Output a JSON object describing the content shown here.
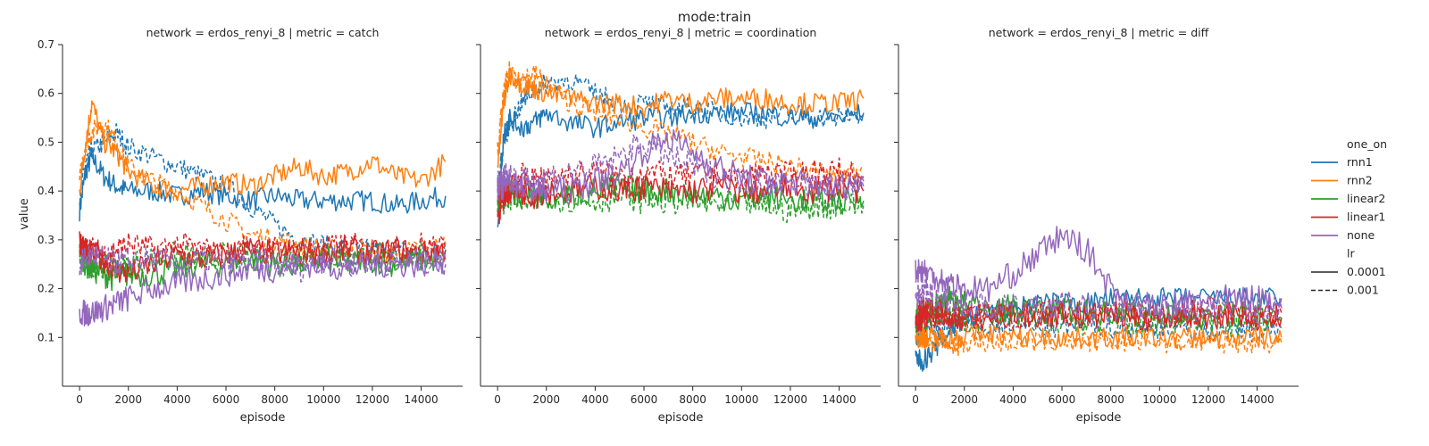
{
  "figure": {
    "suptitle": "mode:train",
    "ylabel": "value",
    "xlabel": "episode"
  },
  "legend": {
    "hue_title": "one_on",
    "hue_items": [
      {
        "label": "rnn1",
        "color": "#1f77b4"
      },
      {
        "label": "rnn2",
        "color": "#ff7f0e"
      },
      {
        "label": "linear2",
        "color": "#2ca02c"
      },
      {
        "label": "linear1",
        "color": "#d62728"
      },
      {
        "label": "none",
        "color": "#9467bd"
      }
    ],
    "style_title": "lr",
    "style_items": [
      {
        "label": "0.0001",
        "dash": "solid"
      },
      {
        "label": "0.001",
        "dash": "dashed"
      }
    ],
    "placement": "right"
  },
  "chart_data": [
    {
      "type": "line",
      "title": "network = erdos_renyi_8 | metric = catch",
      "xlabel": "episode",
      "ylabel": "value",
      "xlim": [
        -700,
        15700
      ],
      "ylim": [
        0,
        0.7
      ],
      "xticks": [
        0,
        2000,
        4000,
        6000,
        8000,
        10000,
        12000,
        14000
      ],
      "yticks": [
        0.1,
        0.2,
        0.3,
        0.4,
        0.5,
        0.6,
        0.7
      ],
      "x": [
        0,
        250,
        500,
        1000,
        1500,
        2000,
        3000,
        4000,
        5000,
        6000,
        7000,
        8000,
        9000,
        10000,
        11000,
        12000,
        13000,
        14000,
        15000
      ],
      "series": [
        {
          "name": "rnn1",
          "lr": "0.0001",
          "values": [
            0.36,
            0.44,
            0.47,
            0.43,
            0.41,
            0.4,
            0.4,
            0.39,
            0.4,
            0.39,
            0.38,
            0.39,
            0.38,
            0.38,
            0.38,
            0.38,
            0.37,
            0.38,
            0.39
          ]
        },
        {
          "name": "rnn1",
          "lr": "0.001",
          "values": [
            0.38,
            0.46,
            0.48,
            0.5,
            0.52,
            0.49,
            0.47,
            0.45,
            0.43,
            0.41,
            0.37,
            0.33,
            0.3,
            0.29,
            0.28,
            0.28,
            0.28,
            0.27,
            0.28
          ]
        },
        {
          "name": "rnn2",
          "lr": "0.0001",
          "values": [
            0.4,
            0.5,
            0.58,
            0.5,
            0.48,
            0.44,
            0.41,
            0.4,
            0.41,
            0.42,
            0.41,
            0.43,
            0.45,
            0.43,
            0.44,
            0.46,
            0.43,
            0.42,
            0.46
          ]
        },
        {
          "name": "rnn2",
          "lr": "0.001",
          "values": [
            0.42,
            0.5,
            0.52,
            0.54,
            0.5,
            0.45,
            0.42,
            0.4,
            0.37,
            0.34,
            0.31,
            0.3,
            0.29,
            0.28,
            0.28,
            0.28,
            0.27,
            0.28,
            0.29
          ]
        },
        {
          "name": "linear2",
          "lr": "0.0001",
          "values": [
            0.28,
            0.25,
            0.24,
            0.23,
            0.22,
            0.23,
            0.23,
            0.24,
            0.25,
            0.25,
            0.26,
            0.25,
            0.25,
            0.26,
            0.25,
            0.26,
            0.25,
            0.26,
            0.26
          ]
        },
        {
          "name": "linear2",
          "lr": "0.001",
          "values": [
            0.27,
            0.26,
            0.25,
            0.25,
            0.24,
            0.25,
            0.26,
            0.27,
            0.26,
            0.27,
            0.26,
            0.27,
            0.26,
            0.27,
            0.26,
            0.27,
            0.26,
            0.27,
            0.27
          ]
        },
        {
          "name": "linear1",
          "lr": "0.0001",
          "values": [
            0.3,
            0.28,
            0.27,
            0.26,
            0.24,
            0.23,
            0.25,
            0.27,
            0.26,
            0.27,
            0.28,
            0.27,
            0.28,
            0.27,
            0.28,
            0.27,
            0.28,
            0.27,
            0.28
          ]
        },
        {
          "name": "linear1",
          "lr": "0.001",
          "values": [
            0.29,
            0.28,
            0.28,
            0.27,
            0.28,
            0.29,
            0.28,
            0.29,
            0.28,
            0.27,
            0.29,
            0.28,
            0.27,
            0.28,
            0.29,
            0.28,
            0.28,
            0.29,
            0.28
          ]
        },
        {
          "name": "none",
          "lr": "0.0001",
          "values": [
            0.15,
            0.15,
            0.15,
            0.16,
            0.17,
            0.18,
            0.2,
            0.21,
            0.22,
            0.23,
            0.24,
            0.24,
            0.25,
            0.25,
            0.24,
            0.25,
            0.25,
            0.25,
            0.26
          ]
        },
        {
          "name": "none",
          "lr": "0.001",
          "values": [
            0.25,
            0.26,
            0.27,
            0.26,
            0.25,
            0.26,
            0.26,
            0.25,
            0.26,
            0.25,
            0.26,
            0.25,
            0.24,
            0.26,
            0.25,
            0.26,
            0.25,
            0.26,
            0.25
          ]
        }
      ]
    },
    {
      "type": "line",
      "title": "network = erdos_renyi_8 | metric = coordination",
      "xlabel": "episode",
      "ylabel": "",
      "xlim": [
        -700,
        15700
      ],
      "ylim": [
        0,
        0.7
      ],
      "xticks": [
        0,
        2000,
        4000,
        6000,
        8000,
        10000,
        12000,
        14000
      ],
      "yticks": [
        0.1,
        0.2,
        0.3,
        0.4,
        0.5,
        0.6,
        0.7
      ],
      "x": [
        0,
        250,
        500,
        1000,
        1500,
        2000,
        3000,
        4000,
        5000,
        6000,
        7000,
        8000,
        9000,
        10000,
        11000,
        12000,
        13000,
        14000,
        15000
      ],
      "series": [
        {
          "name": "rnn1",
          "lr": "0.0001",
          "values": [
            0.33,
            0.52,
            0.55,
            0.53,
            0.54,
            0.56,
            0.54,
            0.53,
            0.54,
            0.55,
            0.55,
            0.56,
            0.56,
            0.56,
            0.56,
            0.55,
            0.55,
            0.55,
            0.56
          ]
        },
        {
          "name": "rnn1",
          "lr": "0.001",
          "values": [
            0.4,
            0.5,
            0.54,
            0.58,
            0.61,
            0.62,
            0.63,
            0.6,
            0.58,
            0.58,
            0.57,
            0.57,
            0.56,
            0.55,
            0.55,
            0.56,
            0.55,
            0.55,
            0.56
          ]
        },
        {
          "name": "rnn2",
          "lr": "0.0001",
          "values": [
            0.45,
            0.58,
            0.64,
            0.62,
            0.61,
            0.6,
            0.59,
            0.58,
            0.58,
            0.57,
            0.59,
            0.58,
            0.59,
            0.59,
            0.59,
            0.58,
            0.58,
            0.58,
            0.59
          ]
        },
        {
          "name": "rnn2",
          "lr": "0.001",
          "values": [
            0.48,
            0.6,
            0.65,
            0.63,
            0.64,
            0.62,
            0.58,
            0.56,
            0.55,
            0.53,
            0.52,
            0.5,
            0.48,
            0.47,
            0.46,
            0.45,
            0.44,
            0.43,
            0.45
          ]
        },
        {
          "name": "linear2",
          "lr": "0.0001",
          "values": [
            0.39,
            0.4,
            0.4,
            0.39,
            0.4,
            0.39,
            0.39,
            0.4,
            0.41,
            0.4,
            0.4,
            0.39,
            0.39,
            0.38,
            0.39,
            0.38,
            0.38,
            0.38,
            0.38
          ]
        },
        {
          "name": "linear2",
          "lr": "0.001",
          "values": [
            0.38,
            0.38,
            0.39,
            0.38,
            0.38,
            0.39,
            0.38,
            0.38,
            0.39,
            0.38,
            0.38,
            0.38,
            0.37,
            0.38,
            0.37,
            0.36,
            0.37,
            0.37,
            0.37
          ]
        },
        {
          "name": "linear1",
          "lr": "0.0001",
          "values": [
            0.35,
            0.39,
            0.4,
            0.4,
            0.39,
            0.4,
            0.4,
            0.41,
            0.4,
            0.41,
            0.4,
            0.4,
            0.41,
            0.4,
            0.4,
            0.41,
            0.4,
            0.41,
            0.4
          ]
        },
        {
          "name": "linear1",
          "lr": "0.001",
          "values": [
            0.38,
            0.41,
            0.42,
            0.43,
            0.42,
            0.43,
            0.43,
            0.44,
            0.43,
            0.44,
            0.43,
            0.43,
            0.44,
            0.43,
            0.44,
            0.43,
            0.44,
            0.44,
            0.43
          ]
        },
        {
          "name": "none",
          "lr": "0.0001",
          "values": [
            0.4,
            0.41,
            0.42,
            0.41,
            0.4,
            0.4,
            0.4,
            0.42,
            0.44,
            0.48,
            0.51,
            0.48,
            0.45,
            0.43,
            0.42,
            0.42,
            0.41,
            0.41,
            0.42
          ]
        },
        {
          "name": "none",
          "lr": "0.001",
          "values": [
            0.42,
            0.44,
            0.43,
            0.42,
            0.42,
            0.43,
            0.44,
            0.45,
            0.47,
            0.5,
            0.47,
            0.45,
            0.43,
            0.42,
            0.41,
            0.42,
            0.41,
            0.4,
            0.41
          ]
        }
      ]
    },
    {
      "type": "line",
      "title": "network = erdos_renyi_8 | metric = diff",
      "xlabel": "episode",
      "ylabel": "",
      "xlim": [
        -700,
        15700
      ],
      "ylim": [
        0,
        0.7
      ],
      "xticks": [
        0,
        2000,
        4000,
        6000,
        8000,
        10000,
        12000,
        14000
      ],
      "yticks": [
        0.1,
        0.2,
        0.3,
        0.4,
        0.5,
        0.6,
        0.7
      ],
      "x": [
        0,
        250,
        500,
        1000,
        1500,
        2000,
        3000,
        4000,
        5000,
        6000,
        7000,
        8000,
        9000,
        10000,
        11000,
        12000,
        13000,
        14000,
        15000
      ],
      "series": [
        {
          "name": "rnn1",
          "lr": "0.0001",
          "values": [
            0.06,
            0.05,
            0.06,
            0.09,
            0.12,
            0.14,
            0.15,
            0.16,
            0.17,
            0.17,
            0.17,
            0.18,
            0.18,
            0.18,
            0.18,
            0.18,
            0.18,
            0.18,
            0.18
          ]
        },
        {
          "name": "rnn1",
          "lr": "0.001",
          "values": [
            0.1,
            0.11,
            0.12,
            0.12,
            0.12,
            0.13,
            0.12,
            0.13,
            0.12,
            0.12,
            0.13,
            0.12,
            0.12,
            0.12,
            0.12,
            0.11,
            0.12,
            0.11,
            0.12
          ]
        },
        {
          "name": "rnn2",
          "lr": "0.0001",
          "values": [
            0.1,
            0.1,
            0.1,
            0.1,
            0.1,
            0.1,
            0.11,
            0.1,
            0.1,
            0.1,
            0.1,
            0.1,
            0.1,
            0.1,
            0.1,
            0.1,
            0.1,
            0.1,
            0.1
          ]
        },
        {
          "name": "rnn2",
          "lr": "0.001",
          "values": [
            0.12,
            0.1,
            0.09,
            0.09,
            0.08,
            0.09,
            0.09,
            0.09,
            0.09,
            0.09,
            0.09,
            0.09,
            0.09,
            0.09,
            0.09,
            0.09,
            0.09,
            0.09,
            0.09
          ]
        },
        {
          "name": "linear2",
          "lr": "0.0001",
          "values": [
            0.14,
            0.15,
            0.16,
            0.17,
            0.18,
            0.17,
            0.16,
            0.16,
            0.15,
            0.16,
            0.15,
            0.15,
            0.15,
            0.15,
            0.15,
            0.14,
            0.15,
            0.14,
            0.14
          ]
        },
        {
          "name": "linear2",
          "lr": "0.001",
          "values": [
            0.13,
            0.14,
            0.14,
            0.15,
            0.15,
            0.14,
            0.14,
            0.14,
            0.13,
            0.14,
            0.13,
            0.14,
            0.13,
            0.13,
            0.14,
            0.13,
            0.13,
            0.13,
            0.13
          ]
        },
        {
          "name": "linear1",
          "lr": "0.0001",
          "values": [
            0.14,
            0.14,
            0.15,
            0.15,
            0.14,
            0.14,
            0.14,
            0.15,
            0.14,
            0.15,
            0.14,
            0.15,
            0.14,
            0.14,
            0.15,
            0.14,
            0.15,
            0.14,
            0.14
          ]
        },
        {
          "name": "linear1",
          "lr": "0.001",
          "values": [
            0.15,
            0.16,
            0.15,
            0.14,
            0.15,
            0.14,
            0.15,
            0.14,
            0.15,
            0.16,
            0.15,
            0.16,
            0.15,
            0.14,
            0.15,
            0.16,
            0.15,
            0.14,
            0.15
          ]
        },
        {
          "name": "none",
          "lr": "0.0001",
          "values": [
            0.24,
            0.24,
            0.23,
            0.22,
            0.21,
            0.2,
            0.2,
            0.23,
            0.27,
            0.31,
            0.28,
            0.2,
            0.17,
            0.16,
            0.17,
            0.18,
            0.18,
            0.18,
            0.18
          ]
        },
        {
          "name": "none",
          "lr": "0.001",
          "values": [
            0.18,
            0.19,
            0.19,
            0.18,
            0.17,
            0.17,
            0.16,
            0.16,
            0.16,
            0.17,
            0.16,
            0.15,
            0.16,
            0.15,
            0.16,
            0.15,
            0.16,
            0.15,
            0.16
          ]
        }
      ]
    }
  ]
}
